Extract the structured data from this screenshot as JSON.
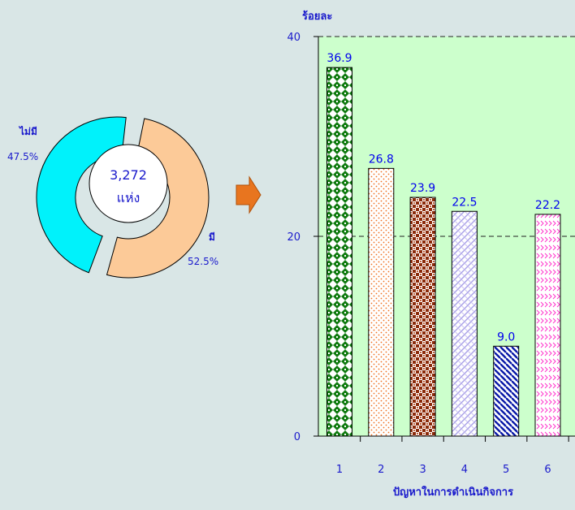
{
  "chart_data": [
    {
      "type": "pie",
      "center_label_value": "3,272",
      "center_label_unit": "แห่ง",
      "slices": [
        {
          "label": "ไม่มี",
          "value": 47.5,
          "value_text": "47.5%",
          "color": "#00f2fb"
        },
        {
          "label": "มี",
          "value": 52.5,
          "value_text": "52.5%",
          "color": "#fcca98"
        }
      ],
      "legend": "none"
    },
    {
      "type": "bar",
      "ylabel": "ร้อยละ",
      "xlabel": "ปัญหาในการดำเนินกิจการ",
      "categories": [
        "1",
        "2",
        "3",
        "4",
        "5",
        "6"
      ],
      "values": [
        36.9,
        26.8,
        23.9,
        22.5,
        9.0,
        22.2
      ],
      "value_labels": [
        "36.9",
        "26.8",
        "23.9",
        "22.5",
        "9.0",
        "22.2"
      ],
      "ylim": [
        0,
        40
      ],
      "yticks": [
        "0",
        "20",
        "40"
      ],
      "grid": "dashed horizontal at 20 and 40",
      "plot_background": "#ccffcc",
      "bar_patterns": [
        "diamond-checker-green",
        "dots-orange",
        "checker-brown",
        "weave-lavender",
        "diagonal-navy",
        "chevron-magenta"
      ]
    }
  ],
  "colors": {
    "label_text": "#0000ee",
    "arrow": "#e87722"
  }
}
